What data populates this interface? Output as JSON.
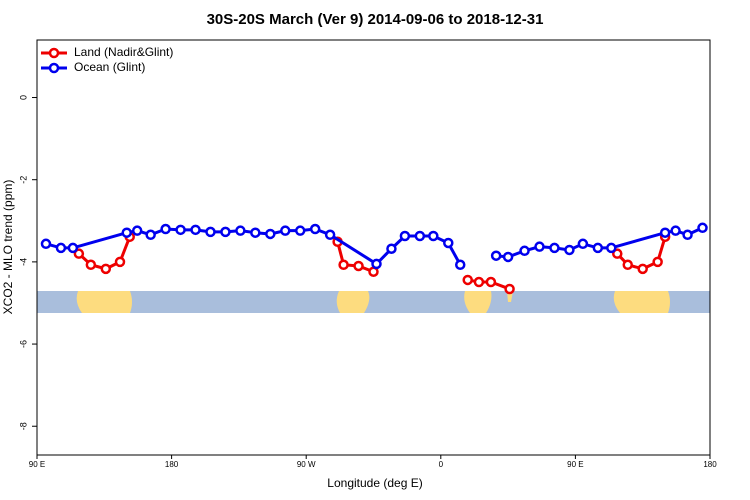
{
  "chart_data": {
    "type": "line",
    "title": "30S-20S March (Ver 9)   2014-09-06 to 2018-12-31",
    "xlabel": "Longitude (deg E)",
    "ylabel": "XCO2 - MLO trend (ppm)",
    "xlim": [
      90,
      540
    ],
    "ylim": [
      -8.7,
      1.4
    ],
    "xticks": [
      {
        "value": 90,
        "label": "90 E"
      },
      180,
      {
        "value": 270,
        "label": "90 W"
      },
      {
        "value": 360,
        "label": "0"
      },
      {
        "value": 450,
        "label": "90 E"
      },
      {
        "value": 540,
        "label": "180"
      }
    ],
    "yticks": [
      0,
      -2,
      -4,
      -6,
      -8
    ],
    "legend": "top-left",
    "series": [
      {
        "name": "Land (Nadir&Glint)",
        "color": "#ee0000",
        "x": [
          118,
          126,
          136,
          145.5,
          152,
          null,
          291,
          295,
          305,
          315,
          null,
          378,
          385.5,
          393.5,
          406,
          null,
          478,
          485,
          495,
          505,
          510
        ],
        "values": [
          -3.8,
          -4.07,
          -4.17,
          -4.0,
          -3.39,
          null,
          -3.51,
          -4.07,
          -4.1,
          -4.24,
          null,
          -4.44,
          -4.49,
          -4.49,
          -4.66,
          null,
          -3.8,
          -4.07,
          -4.17,
          -4.0,
          -3.39
        ]
      },
      {
        "name": "Ocean (Glint)",
        "color": "#0000ee",
        "x": [
          96,
          106,
          114,
          150,
          157,
          166,
          176,
          186,
          196,
          206,
          216,
          226,
          236,
          246,
          256,
          266,
          276,
          286,
          317,
          327,
          336,
          346,
          355,
          365,
          373,
          null,
          397,
          405,
          416,
          426,
          436,
          446,
          455,
          465,
          474,
          510,
          517,
          525,
          535
        ],
        "values": [
          -3.56,
          -3.66,
          -3.66,
          -3.29,
          -3.24,
          -3.34,
          -3.2,
          -3.22,
          -3.22,
          -3.27,
          -3.27,
          -3.24,
          -3.29,
          -3.32,
          -3.24,
          -3.24,
          -3.2,
          -3.34,
          -4.05,
          -3.68,
          -3.37,
          -3.37,
          -3.37,
          -3.54,
          -4.07,
          null,
          -3.85,
          -3.88,
          -3.73,
          -3.63,
          -3.66,
          -3.71,
          -3.56,
          -3.66,
          -3.66,
          -3.29,
          -3.24,
          -3.34,
          -3.17
        ]
      }
    ]
  }
}
